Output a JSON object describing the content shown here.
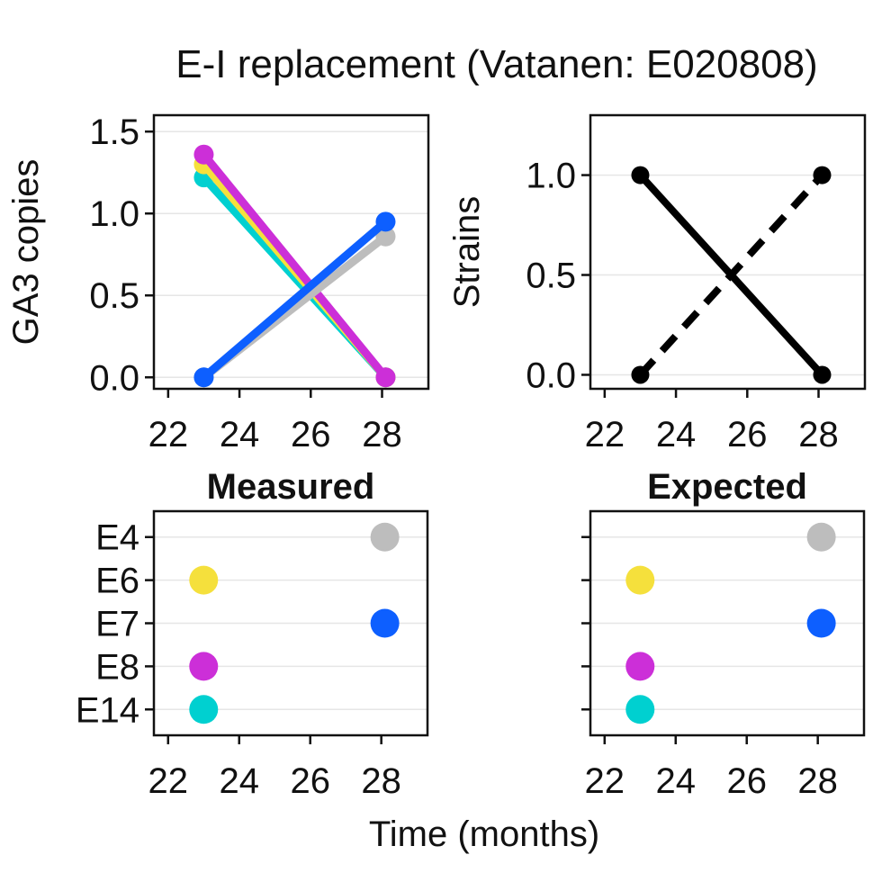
{
  "figure": {
    "title": "E-I replacement (Vatanen: E020808)",
    "xlabel": "Time (months)"
  },
  "chart_data": [
    {
      "id": "copies",
      "type": "line",
      "title": "",
      "xlabel": "",
      "ylabel": "GA3 copies",
      "xlim": [
        21.6,
        29.3
      ],
      "ylim": [
        -0.07,
        1.6
      ],
      "xticks": [
        22,
        24,
        26,
        28
      ],
      "yticks": [
        0.0,
        0.5,
        1.0,
        1.5
      ],
      "ytick_labels": [
        "0.0",
        "0.5",
        "1.0",
        "1.5"
      ],
      "grid": "horizontal",
      "series": [
        {
          "color": "#00d0d0",
          "x": [
            23,
            28.1
          ],
          "y": [
            1.22,
            0.0
          ]
        },
        {
          "color": "#f5e03c",
          "x": [
            23,
            28.1
          ],
          "y": [
            1.3,
            0.0
          ]
        },
        {
          "color": "#cc2fd8",
          "x": [
            23,
            28.1
          ],
          "y": [
            1.36,
            0.0
          ]
        },
        {
          "color": "#bdbdbd",
          "x": [
            23,
            28.1
          ],
          "y": [
            0.0,
            0.86
          ]
        },
        {
          "color": "#0d5fff",
          "x": [
            23,
            28.1
          ],
          "y": [
            0.0,
            0.95
          ]
        }
      ]
    },
    {
      "id": "strains",
      "type": "line",
      "title": "",
      "xlabel": "",
      "ylabel": "Strains",
      "xlim": [
        21.6,
        29.3
      ],
      "ylim": [
        -0.07,
        1.3
      ],
      "xticks": [
        22,
        24,
        26,
        28
      ],
      "yticks": [
        0.0,
        0.5,
        1.0
      ],
      "ytick_labels": [
        "0.0",
        "0.5",
        "1.0"
      ],
      "grid": "horizontal",
      "series": [
        {
          "color": "#000000",
          "dash": "solid",
          "x": [
            23,
            28.1
          ],
          "y": [
            1.0,
            0.0
          ]
        },
        {
          "color": "#000000",
          "dash": "dashed",
          "x": [
            23,
            28.1
          ],
          "y": [
            0.0,
            1.0
          ]
        }
      ]
    },
    {
      "id": "measured",
      "type": "scatter",
      "title": "Measured",
      "xlabel": "",
      "ylabel": "",
      "xlim": [
        21.6,
        29.3
      ],
      "xticks": [
        22,
        24,
        26,
        28
      ],
      "categories": [
        "E4",
        "E6",
        "E7",
        "E8",
        "E14"
      ],
      "show_category_labels": true,
      "grid": "horizontal",
      "points": [
        {
          "category": "E4",
          "x": 28.1,
          "color": "#bdbdbd"
        },
        {
          "category": "E6",
          "x": 23,
          "color": "#f5e03c"
        },
        {
          "category": "E7",
          "x": 28.1,
          "color": "#0d5fff"
        },
        {
          "category": "E8",
          "x": 23,
          "color": "#cc2fd8"
        },
        {
          "category": "E14",
          "x": 23,
          "color": "#00d0d0"
        }
      ]
    },
    {
      "id": "expected",
      "type": "scatter",
      "title": "Expected",
      "xlabel": "",
      "ylabel": "",
      "xlim": [
        21.6,
        29.3
      ],
      "xticks": [
        22,
        24,
        26,
        28
      ],
      "categories": [
        "E4",
        "E6",
        "E7",
        "E8",
        "E14"
      ],
      "show_category_labels": false,
      "grid": "horizontal",
      "points": [
        {
          "category": "E4",
          "x": 28.1,
          "color": "#bdbdbd"
        },
        {
          "category": "E6",
          "x": 23,
          "color": "#f5e03c"
        },
        {
          "category": "E7",
          "x": 28.1,
          "color": "#0d5fff"
        },
        {
          "category": "E8",
          "x": 23,
          "color": "#cc2fd8"
        },
        {
          "category": "E14",
          "x": 23,
          "color": "#00d0d0"
        }
      ]
    }
  ]
}
